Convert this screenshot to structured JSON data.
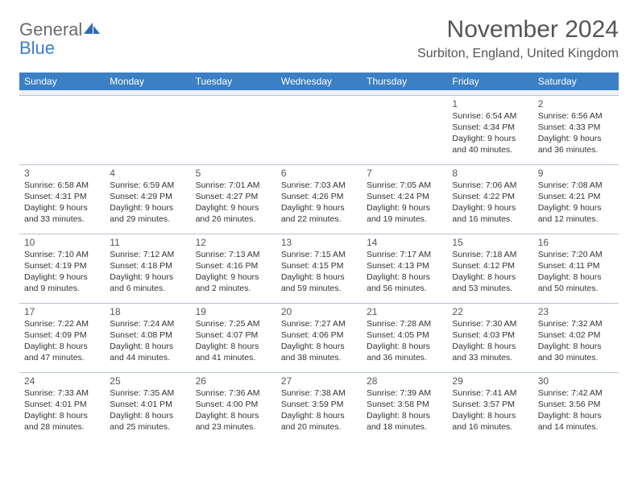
{
  "brand": {
    "part1": "General",
    "part2": "Blue"
  },
  "colors": {
    "header_bg": "#3b7fc4",
    "border": "#b8c4d0",
    "text": "#333333",
    "muted": "#555555",
    "spacer": "#eef1f4"
  },
  "title": "November 2024",
  "location": "Surbiton, England, United Kingdom",
  "day_headers": [
    "Sunday",
    "Monday",
    "Tuesday",
    "Wednesday",
    "Thursday",
    "Friday",
    "Saturday"
  ],
  "weeks": [
    [
      null,
      null,
      null,
      null,
      null,
      {
        "n": "1",
        "sr": "Sunrise: 6:54 AM",
        "ss": "Sunset: 4:34 PM",
        "d1": "Daylight: 9 hours",
        "d2": "and 40 minutes."
      },
      {
        "n": "2",
        "sr": "Sunrise: 6:56 AM",
        "ss": "Sunset: 4:33 PM",
        "d1": "Daylight: 9 hours",
        "d2": "and 36 minutes."
      }
    ],
    [
      {
        "n": "3",
        "sr": "Sunrise: 6:58 AM",
        "ss": "Sunset: 4:31 PM",
        "d1": "Daylight: 9 hours",
        "d2": "and 33 minutes."
      },
      {
        "n": "4",
        "sr": "Sunrise: 6:59 AM",
        "ss": "Sunset: 4:29 PM",
        "d1": "Daylight: 9 hours",
        "d2": "and 29 minutes."
      },
      {
        "n": "5",
        "sr": "Sunrise: 7:01 AM",
        "ss": "Sunset: 4:27 PM",
        "d1": "Daylight: 9 hours",
        "d2": "and 26 minutes."
      },
      {
        "n": "6",
        "sr": "Sunrise: 7:03 AM",
        "ss": "Sunset: 4:26 PM",
        "d1": "Daylight: 9 hours",
        "d2": "and 22 minutes."
      },
      {
        "n": "7",
        "sr": "Sunrise: 7:05 AM",
        "ss": "Sunset: 4:24 PM",
        "d1": "Daylight: 9 hours",
        "d2": "and 19 minutes."
      },
      {
        "n": "8",
        "sr": "Sunrise: 7:06 AM",
        "ss": "Sunset: 4:22 PM",
        "d1": "Daylight: 9 hours",
        "d2": "and 16 minutes."
      },
      {
        "n": "9",
        "sr": "Sunrise: 7:08 AM",
        "ss": "Sunset: 4:21 PM",
        "d1": "Daylight: 9 hours",
        "d2": "and 12 minutes."
      }
    ],
    [
      {
        "n": "10",
        "sr": "Sunrise: 7:10 AM",
        "ss": "Sunset: 4:19 PM",
        "d1": "Daylight: 9 hours",
        "d2": "and 9 minutes."
      },
      {
        "n": "11",
        "sr": "Sunrise: 7:12 AM",
        "ss": "Sunset: 4:18 PM",
        "d1": "Daylight: 9 hours",
        "d2": "and 6 minutes."
      },
      {
        "n": "12",
        "sr": "Sunrise: 7:13 AM",
        "ss": "Sunset: 4:16 PM",
        "d1": "Daylight: 9 hours",
        "d2": "and 2 minutes."
      },
      {
        "n": "13",
        "sr": "Sunrise: 7:15 AM",
        "ss": "Sunset: 4:15 PM",
        "d1": "Daylight: 8 hours",
        "d2": "and 59 minutes."
      },
      {
        "n": "14",
        "sr": "Sunrise: 7:17 AM",
        "ss": "Sunset: 4:13 PM",
        "d1": "Daylight: 8 hours",
        "d2": "and 56 minutes."
      },
      {
        "n": "15",
        "sr": "Sunrise: 7:18 AM",
        "ss": "Sunset: 4:12 PM",
        "d1": "Daylight: 8 hours",
        "d2": "and 53 minutes."
      },
      {
        "n": "16",
        "sr": "Sunrise: 7:20 AM",
        "ss": "Sunset: 4:11 PM",
        "d1": "Daylight: 8 hours",
        "d2": "and 50 minutes."
      }
    ],
    [
      {
        "n": "17",
        "sr": "Sunrise: 7:22 AM",
        "ss": "Sunset: 4:09 PM",
        "d1": "Daylight: 8 hours",
        "d2": "and 47 minutes."
      },
      {
        "n": "18",
        "sr": "Sunrise: 7:24 AM",
        "ss": "Sunset: 4:08 PM",
        "d1": "Daylight: 8 hours",
        "d2": "and 44 minutes."
      },
      {
        "n": "19",
        "sr": "Sunrise: 7:25 AM",
        "ss": "Sunset: 4:07 PM",
        "d1": "Daylight: 8 hours",
        "d2": "and 41 minutes."
      },
      {
        "n": "20",
        "sr": "Sunrise: 7:27 AM",
        "ss": "Sunset: 4:06 PM",
        "d1": "Daylight: 8 hours",
        "d2": "and 38 minutes."
      },
      {
        "n": "21",
        "sr": "Sunrise: 7:28 AM",
        "ss": "Sunset: 4:05 PM",
        "d1": "Daylight: 8 hours",
        "d2": "and 36 minutes."
      },
      {
        "n": "22",
        "sr": "Sunrise: 7:30 AM",
        "ss": "Sunset: 4:03 PM",
        "d1": "Daylight: 8 hours",
        "d2": "and 33 minutes."
      },
      {
        "n": "23",
        "sr": "Sunrise: 7:32 AM",
        "ss": "Sunset: 4:02 PM",
        "d1": "Daylight: 8 hours",
        "d2": "and 30 minutes."
      }
    ],
    [
      {
        "n": "24",
        "sr": "Sunrise: 7:33 AM",
        "ss": "Sunset: 4:01 PM",
        "d1": "Daylight: 8 hours",
        "d2": "and 28 minutes."
      },
      {
        "n": "25",
        "sr": "Sunrise: 7:35 AM",
        "ss": "Sunset: 4:01 PM",
        "d1": "Daylight: 8 hours",
        "d2": "and 25 minutes."
      },
      {
        "n": "26",
        "sr": "Sunrise: 7:36 AM",
        "ss": "Sunset: 4:00 PM",
        "d1": "Daylight: 8 hours",
        "d2": "and 23 minutes."
      },
      {
        "n": "27",
        "sr": "Sunrise: 7:38 AM",
        "ss": "Sunset: 3:59 PM",
        "d1": "Daylight: 8 hours",
        "d2": "and 20 minutes."
      },
      {
        "n": "28",
        "sr": "Sunrise: 7:39 AM",
        "ss": "Sunset: 3:58 PM",
        "d1": "Daylight: 8 hours",
        "d2": "and 18 minutes."
      },
      {
        "n": "29",
        "sr": "Sunrise: 7:41 AM",
        "ss": "Sunset: 3:57 PM",
        "d1": "Daylight: 8 hours",
        "d2": "and 16 minutes."
      },
      {
        "n": "30",
        "sr": "Sunrise: 7:42 AM",
        "ss": "Sunset: 3:56 PM",
        "d1": "Daylight: 8 hours",
        "d2": "and 14 minutes."
      }
    ]
  ]
}
